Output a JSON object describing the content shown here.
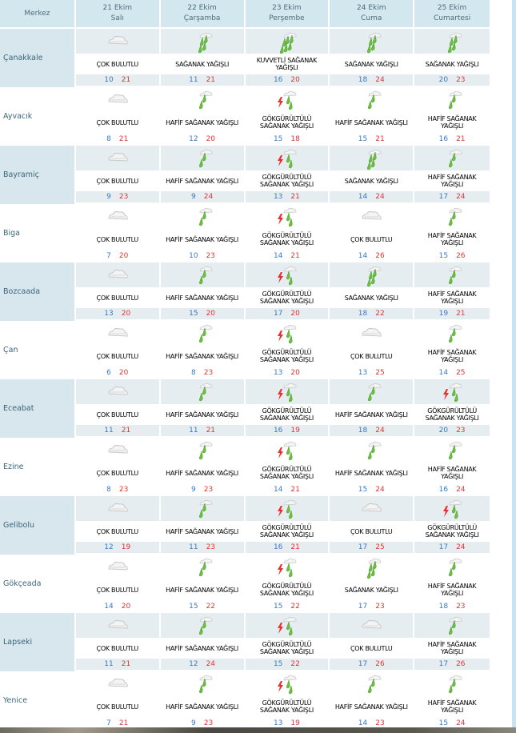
{
  "header": {
    "city_col": "Merkez",
    "days": [
      {
        "date": "21 Ekim",
        "weekday": "Salı"
      },
      {
        "date": "22 Ekim",
        "weekday": "Çarşamba"
      },
      {
        "date": "23 Ekim",
        "weekday": "Perşembe"
      },
      {
        "date": "24 Ekim",
        "weekday": "Cuma"
      },
      {
        "date": "25 Ekim",
        "weekday": "Cumartesi"
      }
    ]
  },
  "colors": {
    "low_temp": "#3a78c0",
    "high_temp": "#e03535",
    "header_bg": "#d3e7ef",
    "row_shade": "#e5edf1"
  },
  "rows": [
    {
      "city": "Çanakkale",
      "days": [
        {
          "icon": "cloudy-icon",
          "desc": "ÇOK BULUTLU",
          "low": "10",
          "high": "21"
        },
        {
          "icon": "shower-icon",
          "desc": "SAĞANAK YAĞIŞLI",
          "low": "11",
          "high": "21"
        },
        {
          "icon": "heavy-shower-icon",
          "desc": "KUVVETLİ SAĞANAK YAĞIŞLI",
          "low": "16",
          "high": "20"
        },
        {
          "icon": "shower-icon",
          "desc": "SAĞANAK YAĞIŞLI",
          "low": "18",
          "high": "24"
        },
        {
          "icon": "shower-icon",
          "desc": "SAĞANAK YAĞIŞLI",
          "low": "20",
          "high": "23"
        }
      ]
    },
    {
      "city": "Ayvacık",
      "days": [
        {
          "icon": "cloudy-icon",
          "desc": "ÇOK BULUTLU",
          "low": "8",
          "high": "21"
        },
        {
          "icon": "light-shower-icon",
          "desc": "HAFİF SAĞANAK YAĞIŞLI",
          "low": "12",
          "high": "20"
        },
        {
          "icon": "thunderstorm-icon",
          "desc": "GÖKGÜRÜLTÜLÜ SAĞANAK YAĞIŞLI",
          "low": "15",
          "high": "18"
        },
        {
          "icon": "light-shower-icon",
          "desc": "HAFİF SAĞANAK YAĞIŞLI",
          "low": "15",
          "high": "21"
        },
        {
          "icon": "light-shower-icon",
          "desc": "HAFİF SAĞANAK YAĞIŞLI",
          "low": "16",
          "high": "21"
        }
      ]
    },
    {
      "city": "Bayramiç",
      "days": [
        {
          "icon": "cloudy-icon",
          "desc": "ÇOK BULUTLU",
          "low": "9",
          "high": "23"
        },
        {
          "icon": "light-shower-icon",
          "desc": "HAFİF SAĞANAK YAĞIŞLI",
          "low": "9",
          "high": "24"
        },
        {
          "icon": "thunderstorm-icon",
          "desc": "GÖKGÜRÜLTÜLÜ SAĞANAK YAĞIŞLI",
          "low": "13",
          "high": "21"
        },
        {
          "icon": "shower-icon",
          "desc": "SAĞANAK YAĞIŞLI",
          "low": "14",
          "high": "24"
        },
        {
          "icon": "light-shower-icon",
          "desc": "HAFİF SAĞANAK YAĞIŞLI",
          "low": "17",
          "high": "24"
        }
      ]
    },
    {
      "city": "Biga",
      "days": [
        {
          "icon": "cloudy-icon",
          "desc": "ÇOK BULUTLU",
          "low": "7",
          "high": "20"
        },
        {
          "icon": "light-shower-icon",
          "desc": "HAFİF SAĞANAK YAĞIŞLI",
          "low": "10",
          "high": "23"
        },
        {
          "icon": "thunderstorm-icon",
          "desc": "GÖKGÜRÜLTÜLÜ SAĞANAK YAĞIŞLI",
          "low": "14",
          "high": "21"
        },
        {
          "icon": "cloudy-icon",
          "desc": "ÇOK BULUTLU",
          "low": "14",
          "high": "26"
        },
        {
          "icon": "light-shower-icon",
          "desc": "HAFİF SAĞANAK YAĞIŞLI",
          "low": "15",
          "high": "26"
        }
      ]
    },
    {
      "city": "Bozcaada",
      "days": [
        {
          "icon": "cloudy-icon",
          "desc": "ÇOK BULUTLU",
          "low": "13",
          "high": "20"
        },
        {
          "icon": "light-shower-icon",
          "desc": "HAFİF SAĞANAK YAĞIŞLI",
          "low": "15",
          "high": "20"
        },
        {
          "icon": "thunderstorm-icon",
          "desc": "GÖKGÜRÜLTÜLÜ SAĞANAK YAĞIŞLI",
          "low": "17",
          "high": "20"
        },
        {
          "icon": "shower-icon",
          "desc": "SAĞANAK YAĞIŞLI",
          "low": "18",
          "high": "22"
        },
        {
          "icon": "light-shower-icon",
          "desc": "HAFİF SAĞANAK YAĞIŞLI",
          "low": "19",
          "high": "21"
        }
      ]
    },
    {
      "city": "Çan",
      "days": [
        {
          "icon": "cloudy-icon",
          "desc": "ÇOK BULUTLU",
          "low": "6",
          "high": "20"
        },
        {
          "icon": "light-shower-icon",
          "desc": "HAFİF SAĞANAK YAĞIŞLI",
          "low": "8",
          "high": "23"
        },
        {
          "icon": "thunderstorm-icon",
          "desc": "GÖKGÜRÜLTÜLÜ SAĞANAK YAĞIŞLI",
          "low": "13",
          "high": "20"
        },
        {
          "icon": "cloudy-icon",
          "desc": "ÇOK BULUTLU",
          "low": "13",
          "high": "25"
        },
        {
          "icon": "light-shower-icon",
          "desc": "HAFİF SAĞANAK YAĞIŞLI",
          "low": "14",
          "high": "25"
        }
      ]
    },
    {
      "city": "Eceabat",
      "days": [
        {
          "icon": "cloudy-icon",
          "desc": "ÇOK BULUTLU",
          "low": "11",
          "high": "21"
        },
        {
          "icon": "light-shower-icon",
          "desc": "HAFİF SAĞANAK YAĞIŞLI",
          "low": "11",
          "high": "21"
        },
        {
          "icon": "thunderstorm-icon",
          "desc": "GÖKGÜRÜLTÜLÜ SAĞANAK YAĞIŞLI",
          "low": "16",
          "high": "19"
        },
        {
          "icon": "light-shower-icon",
          "desc": "HAFİF SAĞANAK YAĞIŞLI",
          "low": "18",
          "high": "24"
        },
        {
          "icon": "thunderstorm-icon",
          "desc": "GÖKGÜRÜLTÜLÜ SAĞANAK YAĞIŞLI",
          "low": "20",
          "high": "23"
        }
      ]
    },
    {
      "city": "Ezine",
      "days": [
        {
          "icon": "cloudy-icon",
          "desc": "ÇOK BULUTLU",
          "low": "8",
          "high": "23"
        },
        {
          "icon": "light-shower-icon",
          "desc": "HAFİF SAĞANAK YAĞIŞLI",
          "low": "9",
          "high": "23"
        },
        {
          "icon": "thunderstorm-icon",
          "desc": "GÖKGÜRÜLTÜLÜ SAĞANAK YAĞIŞLI",
          "low": "14",
          "high": "21"
        },
        {
          "icon": "light-shower-icon",
          "desc": "HAFİF SAĞANAK YAĞIŞLI",
          "low": "15",
          "high": "24"
        },
        {
          "icon": "light-shower-icon",
          "desc": "HAFİF SAĞANAK YAĞIŞLI",
          "low": "16",
          "high": "24"
        }
      ]
    },
    {
      "city": "Gelibolu",
      "days": [
        {
          "icon": "cloudy-icon",
          "desc": "ÇOK BULUTLU",
          "low": "12",
          "high": "19"
        },
        {
          "icon": "light-shower-icon",
          "desc": "HAFİF SAĞANAK YAĞIŞLI",
          "low": "11",
          "high": "23"
        },
        {
          "icon": "thunderstorm-icon",
          "desc": "GÖKGÜRÜLTÜLÜ SAĞANAK YAĞIŞLI",
          "low": "16",
          "high": "21"
        },
        {
          "icon": "cloudy-icon",
          "desc": "ÇOK BULUTLU",
          "low": "17",
          "high": "25"
        },
        {
          "icon": "thunderstorm-icon",
          "desc": "GÖKGÜRÜLTÜLÜ SAĞANAK YAĞIŞLI",
          "low": "17",
          "high": "24"
        }
      ]
    },
    {
      "city": "Gökçeada",
      "days": [
        {
          "icon": "cloudy-icon",
          "desc": "ÇOK BULUTLU",
          "low": "14",
          "high": "20"
        },
        {
          "icon": "light-shower-icon",
          "desc": "HAFİF SAĞANAK YAĞIŞLI",
          "low": "15",
          "high": "22"
        },
        {
          "icon": "thunderstorm-icon",
          "desc": "GÖKGÜRÜLTÜLÜ SAĞANAK YAĞIŞLI",
          "low": "15",
          "high": "22"
        },
        {
          "icon": "shower-icon",
          "desc": "SAĞANAK YAĞIŞLI",
          "low": "17",
          "high": "23"
        },
        {
          "icon": "light-shower-icon",
          "desc": "HAFİF SAĞANAK YAĞIŞLI",
          "low": "18",
          "high": "23"
        }
      ]
    },
    {
      "city": "Lapseki",
      "days": [
        {
          "icon": "cloudy-icon",
          "desc": "ÇOK BULUTLU",
          "low": "11",
          "high": "21"
        },
        {
          "icon": "light-shower-icon",
          "desc": "HAFİF SAĞANAK YAĞIŞLI",
          "low": "12",
          "high": "24"
        },
        {
          "icon": "thunderstorm-icon",
          "desc": "GÖKGÜRÜLTÜLÜ SAĞANAK YAĞIŞLI",
          "low": "15",
          "high": "22"
        },
        {
          "icon": "cloudy-icon",
          "desc": "ÇOK BULUTLU",
          "low": "17",
          "high": "26"
        },
        {
          "icon": "light-shower-icon",
          "desc": "HAFİF SAĞANAK YAĞIŞLI",
          "low": "17",
          "high": "26"
        }
      ]
    },
    {
      "city": "Yenice",
      "days": [
        {
          "icon": "cloudy-icon",
          "desc": "ÇOK BULUTLU",
          "low": "7",
          "high": "21"
        },
        {
          "icon": "light-shower-icon",
          "desc": "HAFİF SAĞANAK YAĞIŞLI",
          "low": "9",
          "high": "23"
        },
        {
          "icon": "thunderstorm-icon",
          "desc": "GÖKGÜRÜLTÜLÜ SAĞANAK YAĞIŞLI",
          "low": "13",
          "high": "19"
        },
        {
          "icon": "light-shower-icon",
          "desc": "HAFİF SAĞANAK YAĞIŞLI",
          "low": "14",
          "high": "23"
        },
        {
          "icon": "light-shower-icon",
          "desc": "HAFİF SAĞANAK YAĞIŞLI",
          "low": "15",
          "high": "24"
        }
      ]
    }
  ]
}
